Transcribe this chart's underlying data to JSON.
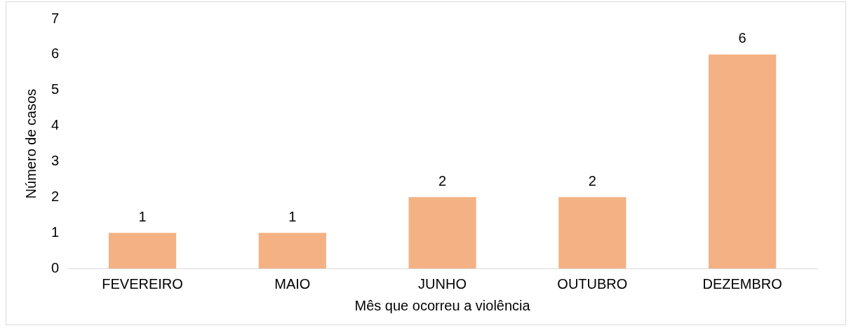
{
  "chart_data": {
    "type": "bar",
    "xlabel": "Mês que ocorreu a violência",
    "ylabel": "Número de casos",
    "categories": [
      "FEVEREIRO",
      "MAIO",
      "JUNHO",
      "OUTUBRO",
      "DEZEMBRO"
    ],
    "values": [
      1,
      1,
      2,
      2,
      6
    ],
    "color": "#f4b183",
    "ylim": [
      0,
      7
    ],
    "yticks": [
      0,
      1,
      2,
      3,
      4,
      5,
      6,
      7
    ],
    "grid": false,
    "data_labels": true
  }
}
